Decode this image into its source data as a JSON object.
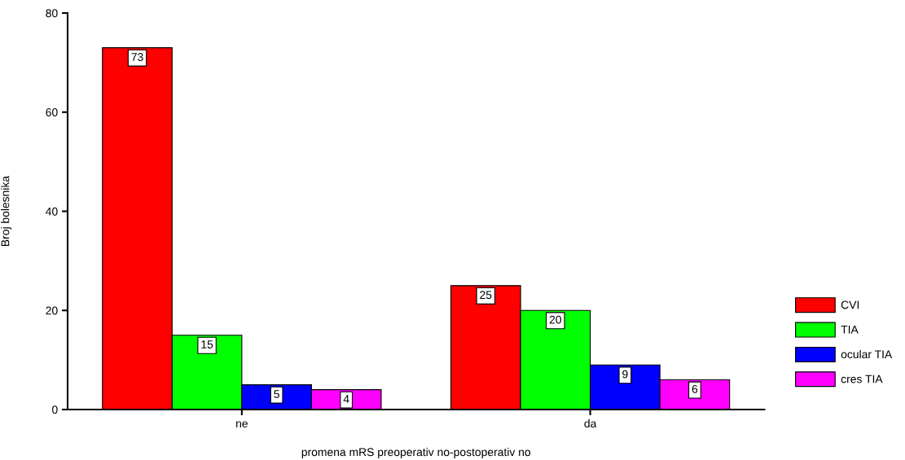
{
  "chart_data": {
    "type": "bar",
    "xlabel": "promena mRS preoperativ no-postoperativ no",
    "ylabel": "Broj bolesnika",
    "categories": [
      "ne",
      "da"
    ],
    "series": [
      {
        "name": "CVI",
        "color": "#ff0000",
        "values": [
          73,
          25
        ]
      },
      {
        "name": "TIA",
        "color": "#00ff00",
        "values": [
          15,
          20
        ]
      },
      {
        "name": "ocular TIA",
        "color": "#0000ff",
        "values": [
          5,
          9
        ]
      },
      {
        "name": "cres TIA",
        "color": "#ff00ff",
        "values": [
          4,
          6
        ]
      }
    ],
    "ylim": [
      0,
      80
    ],
    "yticks": [
      0,
      20,
      40,
      60,
      80
    ],
    "grid": false,
    "legend": "right",
    "data_labels": true
  }
}
